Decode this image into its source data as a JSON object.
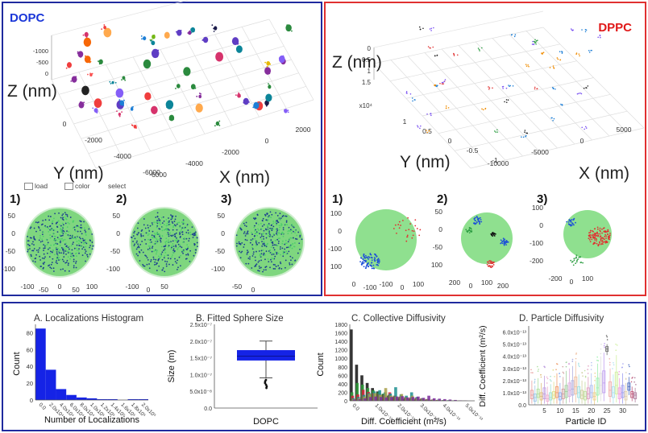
{
  "top_panels": {
    "dopc": {
      "title": "DOPC",
      "z_label": "Z (nm)",
      "y_label": "Y (nm)",
      "x_label": "X (nm)",
      "z_ticks": [
        "0",
        "-500",
        "-1000"
      ],
      "y_ticks": [
        "0",
        "-2000",
        "-4000",
        "-6000"
      ],
      "x_ticks": [
        "2000",
        "0",
        "-2000",
        "-4000",
        "-6000"
      ],
      "controls": [
        "load",
        "color",
        "select"
      ],
      "subplots": [
        {
          "label": "1)",
          "ticks": [
            "50",
            "0",
            "-50",
            "-100",
            "-100",
            "-50",
            "0",
            "50",
            "100"
          ]
        },
        {
          "label": "2)",
          "ticks": [
            "50",
            "0",
            "-50",
            "-100",
            "-100",
            "0",
            "50"
          ]
        },
        {
          "label": "3)",
          "ticks": [
            "50",
            "0",
            "-50",
            "-100",
            "-50",
            "0"
          ]
        }
      ]
    },
    "dppc": {
      "title": "DPPC",
      "z_label": "Z (nm)",
      "y_label": "Y (nm)",
      "x_label": "X (nm)",
      "z_ticks": [
        "1.5",
        "1",
        "0.5",
        "0"
      ],
      "z_exp": "x10⁴",
      "y_ticks": [
        "1",
        "0.5",
        "0",
        "-0.5",
        "-1"
      ],
      "x_ticks": [
        "5000",
        "0",
        "-5000",
        "-10000"
      ],
      "subplots": [
        {
          "label": "1)",
          "ticks": [
            "100",
            "0",
            "-100",
            "100",
            "0",
            "-100",
            "-100",
            "0",
            "100"
          ]
        },
        {
          "label": "2)",
          "ticks": [
            "50",
            "0",
            "-50",
            "100",
            "200",
            "0",
            "100",
            "200"
          ]
        },
        {
          "label": "3)",
          "ticks": [
            "100",
            "0",
            "-100",
            "-200",
            "-200",
            "0",
            "100"
          ]
        }
      ]
    }
  },
  "chart_data": [
    {
      "type": "bar",
      "title": "A. Localizations Histogram",
      "xlabel": "Number of Localizations",
      "ylabel": "Count",
      "ylim": [
        0,
        90
      ],
      "yticks": [
        "0",
        "20",
        "40",
        "60",
        "80"
      ],
      "xticks": [
        "0.0",
        "2.0x10⁴",
        "4.0x10⁴",
        "6.0x10⁴",
        "8.0x10⁴",
        "1.0x10⁵",
        "1.2x10⁵",
        "1.4x10⁵",
        "1.6x10⁵",
        "1.8x10⁵",
        "2.0x10⁵"
      ],
      "values": [
        85,
        36,
        13,
        6,
        3,
        2,
        1,
        1,
        0,
        1,
        1
      ],
      "color": "#1523e6"
    },
    {
      "type": "box",
      "title": "B. Fitted Sphere Size",
      "xlabel": "DOPC",
      "ylabel": "Size (m)",
      "ylim": [
        0,
        2.5e-07
      ],
      "yticks": [
        "0.0",
        "5.0x10⁻⁸",
        "1.0x10⁻⁷",
        "1.5x10⁻⁷",
        "2.0x10⁻⁷",
        "2.5x10⁻⁷"
      ],
      "q1": 1.42e-07,
      "median": 1.55e-07,
      "q3": 1.73e-07,
      "whisker_low": 9e-08,
      "whisker_high": 2e-07,
      "outliers": [
        6e-08,
        6.5e-08,
        7e-08,
        7.5e-08,
        8e-08,
        8.4e-08
      ],
      "color": "#1523e6"
    },
    {
      "type": "bar",
      "title": "C. Collective Diffusivity",
      "xlabel": "Diff. Coefficient (m²/s)",
      "ylabel": "Count",
      "ylim": [
        0,
        1800
      ],
      "yticks": [
        "0",
        "200",
        "400",
        "600",
        "800",
        "1000",
        "1200",
        "1400",
        "1600",
        "1800"
      ],
      "xticks": [
        "0.0",
        "1.0x10⁻¹³",
        "2.0x10⁻¹³",
        "3.0x10⁻¹³",
        "4.0x10⁻¹³",
        "5.0x10⁻¹³"
      ],
      "series": [
        {
          "name": "black",
          "color": "#111111",
          "values": [
            1680,
            850,
            600,
            420,
            300,
            220,
            160,
            120,
            90,
            60,
            40,
            30,
            20,
            15,
            10,
            8,
            6,
            4,
            3,
            2,
            1,
            1
          ]
        },
        {
          "name": "green",
          "color": "#2e9e3a",
          "values": [
            200,
            420,
            380,
            300,
            250,
            200,
            170,
            140,
            120,
            90,
            70,
            60,
            50,
            40,
            30,
            20,
            15,
            10,
            8,
            6,
            4,
            2
          ]
        },
        {
          "name": "red",
          "color": "#d81c3a",
          "values": [
            120,
            150,
            260,
            210,
            180,
            160,
            140,
            200,
            120,
            100,
            90,
            80,
            70,
            60,
            40,
            30,
            20,
            15,
            10,
            8,
            5,
            3
          ]
        },
        {
          "name": "teal",
          "color": "#1c8f8f",
          "values": [
            60,
            90,
            140,
            180,
            220,
            250,
            200,
            170,
            320,
            150,
            120,
            200,
            90,
            60,
            40,
            30,
            25,
            20,
            15,
            10,
            5,
            3
          ]
        },
        {
          "name": "olive",
          "color": "#a8a04a",
          "values": [
            40,
            60,
            100,
            160,
            180,
            140,
            300,
            120,
            100,
            160,
            80,
            120,
            60,
            50,
            40,
            30,
            20,
            15,
            10,
            8,
            5,
            2
          ]
        },
        {
          "name": "purple",
          "color": "#7a2a9a",
          "values": [
            30,
            40,
            60,
            90,
            100,
            90,
            80,
            90,
            100,
            110,
            80,
            90,
            100,
            70,
            120,
            60,
            50,
            40,
            30,
            20,
            10,
            5
          ]
        }
      ]
    },
    {
      "type": "box",
      "title": "D. Particle Diffusivity",
      "xlabel": "Particle ID",
      "ylabel": "Diff. Coefficient (m²/s)",
      "ylim": [
        0,
        6.5e-13
      ],
      "yticks": [
        "0.0",
        "1.0x10⁻¹³",
        "2.0x10⁻¹³",
        "3.0x10⁻¹³",
        "4.0x10⁻¹³",
        "5.0x10⁻¹³",
        "6.0x10⁻¹³"
      ],
      "xticks": [
        "5",
        "10",
        "15",
        "20",
        "25",
        "30"
      ],
      "particles": [
        {
          "id": 1,
          "q1": 0.5,
          "med": 0.8,
          "q3": 1.2,
          "lo": 0.1,
          "hi": 2.0,
          "color": "#e8a0a0"
        },
        {
          "id": 2,
          "q1": 0.3,
          "med": 0.6,
          "q3": 0.9,
          "lo": 0.0,
          "hi": 1.6,
          "color": "#a0c8e8"
        },
        {
          "id": 3,
          "q1": 0.6,
          "med": 0.9,
          "q3": 1.3,
          "lo": 0.1,
          "hi": 2.2,
          "color": "#b0e0a0"
        },
        {
          "id": 4,
          "q1": 0.4,
          "med": 0.7,
          "q3": 1.0,
          "lo": 0.0,
          "hi": 1.8,
          "color": "#e0c080"
        },
        {
          "id": 5,
          "q1": 0.5,
          "med": 0.9,
          "q3": 1.4,
          "lo": 0.1,
          "hi": 2.4,
          "color": "#c0a0e0"
        },
        {
          "id": 6,
          "q1": 0.3,
          "med": 0.5,
          "q3": 0.8,
          "lo": 0.0,
          "hi": 1.5,
          "color": "#f0b0d0"
        },
        {
          "id": 7,
          "q1": 0.4,
          "med": 0.6,
          "q3": 1.0,
          "lo": 0.0,
          "hi": 1.7,
          "color": "#a0e0d0"
        },
        {
          "id": 8,
          "q1": 0.5,
          "med": 0.8,
          "q3": 1.1,
          "lo": 0.1,
          "hi": 1.9,
          "color": "#e0e090"
        },
        {
          "id": 9,
          "q1": 0.6,
          "med": 1.0,
          "q3": 1.5,
          "lo": 0.1,
          "hi": 2.6,
          "color": "#f0a070"
        },
        {
          "id": 10,
          "q1": 0.4,
          "med": 0.7,
          "q3": 1.0,
          "lo": 0.0,
          "hi": 1.8,
          "color": "#90b0f0"
        },
        {
          "id": 11,
          "q1": 0.5,
          "med": 0.9,
          "q3": 1.3,
          "lo": 0.1,
          "hi": 2.3,
          "color": "#d0a0a0"
        },
        {
          "id": 12,
          "q1": 0.6,
          "med": 1.1,
          "q3": 1.6,
          "lo": 0.1,
          "hi": 2.8,
          "color": "#a0d0a0"
        },
        {
          "id": 13,
          "q1": 0.7,
          "med": 1.2,
          "q3": 1.8,
          "lo": 0.2,
          "hi": 3.0,
          "color": "#e0b0e0"
        },
        {
          "id": 14,
          "q1": 0.8,
          "med": 1.3,
          "q3": 2.0,
          "lo": 0.2,
          "hi": 3.2,
          "color": "#b0b0e0"
        },
        {
          "id": 15,
          "q1": 0.9,
          "med": 1.5,
          "q3": 2.3,
          "lo": 0.2,
          "hi": 3.6,
          "color": "#f0c0a0"
        },
        {
          "id": 16,
          "q1": 0.6,
          "med": 1.0,
          "q3": 1.5,
          "lo": 0.1,
          "hi": 2.5,
          "color": "#a0e0e0"
        },
        {
          "id": 17,
          "q1": 0.5,
          "med": 0.8,
          "q3": 1.2,
          "lo": 0.1,
          "hi": 2.0,
          "color": "#d0d0a0"
        },
        {
          "id": 18,
          "q1": 0.4,
          "med": 0.7,
          "q3": 1.1,
          "lo": 0.0,
          "hi": 1.9,
          "color": "#c0e0a0"
        },
        {
          "id": 19,
          "q1": 0.5,
          "med": 0.9,
          "q3": 1.4,
          "lo": 0.1,
          "hi": 2.3,
          "color": "#e0a0c0"
        },
        {
          "id": 20,
          "q1": 0.6,
          "med": 1.0,
          "q3": 1.6,
          "lo": 0.1,
          "hi": 2.6,
          "color": "#b0c0f0"
        },
        {
          "id": 21,
          "q1": 0.4,
          "med": 0.7,
          "q3": 1.0,
          "lo": 0.0,
          "hi": 1.7,
          "color": "#f0d090"
        },
        {
          "id": 22,
          "q1": 0.8,
          "med": 1.4,
          "q3": 2.2,
          "lo": 0.2,
          "hi": 3.4,
          "color": "#a0f0b0"
        },
        {
          "id": 23,
          "q1": 0.9,
          "med": 1.6,
          "q3": 2.6,
          "lo": 0.3,
          "hi": 4.0,
          "color": "#e0e0e0"
        },
        {
          "id": 24,
          "q1": 1.0,
          "med": 1.8,
          "q3": 2.8,
          "lo": 0.3,
          "hi": 4.3,
          "color": "#c0a0f0"
        },
        {
          "id": 25,
          "q1": 4.4,
          "med": 4.6,
          "q3": 4.8,
          "lo": 4.1,
          "hi": 5.0,
          "color": "#707070"
        },
        {
          "id": 26,
          "q1": 0.7,
          "med": 1.2,
          "q3": 1.9,
          "lo": 0.2,
          "hi": 3.0,
          "color": "#f0b0b0"
        },
        {
          "id": 27,
          "q1": 0.6,
          "med": 1.0,
          "q3": 1.5,
          "lo": 0.1,
          "hi": 2.5,
          "color": "#b0e0f0"
        },
        {
          "id": 28,
          "q1": 0.9,
          "med": 1.6,
          "q3": 2.7,
          "lo": 0.2,
          "hi": 4.1,
          "color": "#d0f0a0"
        },
        {
          "id": 29,
          "q1": 0.5,
          "med": 0.9,
          "q3": 1.4,
          "lo": 0.1,
          "hi": 2.2,
          "color": "#f0a0e0"
        },
        {
          "id": 30,
          "q1": 0.6,
          "med": 1.0,
          "q3": 1.6,
          "lo": 0.1,
          "hi": 2.6,
          "color": "#a0a0f0"
        },
        {
          "id": 31,
          "q1": 0.4,
          "med": 0.7,
          "q3": 1.1,
          "lo": 0.0,
          "hi": 1.8,
          "color": "#e0d0b0"
        },
        {
          "id": 32,
          "q1": 1.2,
          "med": 1.5,
          "q3": 1.8,
          "lo": 0.8,
          "hi": 2.3,
          "color": "#5070c0"
        },
        {
          "id": 33,
          "q1": 0.6,
          "med": 0.9,
          "q3": 1.1,
          "lo": 0.3,
          "hi": 1.5,
          "color": "#c06080"
        },
        {
          "id": 34,
          "q1": 0.5,
          "med": 0.8,
          "q3": 1.0,
          "lo": 0.2,
          "hi": 1.4,
          "color": "#b080a0"
        }
      ]
    }
  ]
}
